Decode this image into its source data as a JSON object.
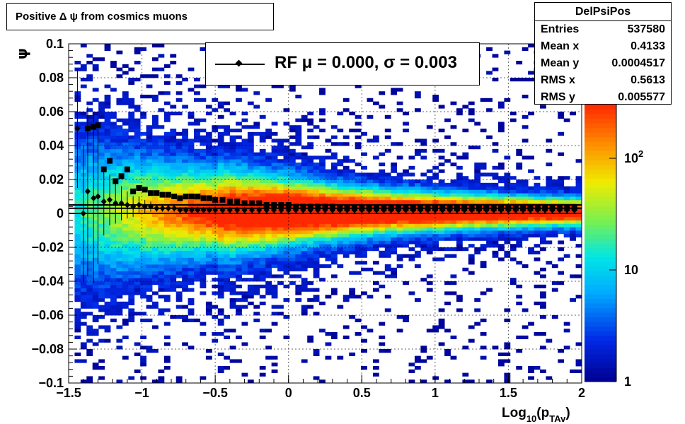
{
  "title": "Positive Δ ψ from cosmics muons",
  "stats": {
    "name": "DelPsiPos",
    "rows": [
      {
        "label": "Entries",
        "value": "537580"
      },
      {
        "label": "Mean x",
        "value": "0.4133"
      },
      {
        "label": "Mean y",
        "value": "0.0004517"
      },
      {
        "label": "RMS x",
        "value": "0.5613"
      },
      {
        "label": "RMS y",
        "value": "0.005577"
      }
    ]
  },
  "legend": {
    "entry": "RF μ =  0.000, σ =   0.003"
  },
  "chart_data": {
    "type": "heatmap",
    "xlabel": "Log10(pTAv)",
    "ylabel": "ψ",
    "xlim": [
      -1.5,
      2
    ],
    "ylim": [
      -0.1,
      0.1
    ],
    "x_ticks": [
      "−1.5",
      "−1",
      "−0.5",
      "0",
      "0.5",
      "1",
      "1.5",
      "2"
    ],
    "y_ticks": [
      "−0.1",
      "−0.08",
      "−0.06",
      "−0.04",
      "−0.02",
      "0",
      "0.02",
      "0.04",
      "0.06",
      "0.08",
      "0.1"
    ],
    "z_ticks": [
      "1",
      "10",
      "10^2"
    ],
    "z_scale": "log",
    "grid": true,
    "colors": {
      "low": "#00008f",
      "mid": "#00c8ff",
      "high": "#ff3000",
      "line": "#000000"
    },
    "series": [
      {
        "name": "mean",
        "marker": "diamond",
        "x": [
          -1.44,
          -1.4,
          -1.37,
          -1.33,
          -1.3,
          -1.26,
          -1.22,
          -1.18,
          -1.14,
          -1.1,
          -1.06,
          -1.02,
          -0.98,
          -0.94,
          -0.9,
          -0.86,
          -0.82,
          -0.78,
          -0.74,
          -0.7,
          -0.66,
          -0.62,
          -0.58,
          -0.54,
          -0.5,
          -0.45,
          -0.4,
          -0.35,
          -0.3,
          -0.25,
          -0.2,
          -0.15,
          -0.1,
          -0.05,
          0.0,
          0.05,
          0.1,
          0.15,
          0.2,
          0.25,
          0.3,
          0.35,
          0.4,
          0.45,
          0.5,
          0.55,
          0.6,
          0.65,
          0.7,
          0.75,
          0.8,
          0.85,
          0.9,
          0.95,
          1.0,
          1.05,
          1.1,
          1.15,
          1.2,
          1.25,
          1.3,
          1.35,
          1.4,
          1.45,
          1.5,
          1.55,
          1.6,
          1.65,
          1.7,
          1.75,
          1.8,
          1.85,
          1.9,
          1.95
        ],
        "y": [
          0.05,
          0.0,
          0.013,
          0.009,
          0.01,
          0.007,
          0.008,
          0.006,
          0.006,
          0.005,
          0.004,
          0.005,
          0.004,
          0.004,
          0.003,
          0.003,
          0.003,
          0.003,
          0.002,
          0.002,
          0.002,
          0.002,
          0.002,
          0.002,
          0.002,
          0.002,
          0.002,
          0.002,
          0.002,
          0.002,
          0.002,
          0.002,
          0.002,
          0.002,
          0.002,
          0.002,
          0.002,
          0.002,
          0.002,
          0.002,
          0.002,
          0.002,
          0.002,
          0.002,
          0.002,
          0.002,
          0.002,
          0.002,
          0.002,
          0.002,
          0.002,
          0.002,
          0.002,
          0.002,
          0.002,
          0.002,
          0.002,
          0.002,
          0.002,
          0.002,
          0.002,
          0.002,
          0.002,
          0.002,
          0.002,
          0.002,
          0.002,
          0.002,
          0.002,
          0.002,
          0.002,
          0.002,
          0.002,
          0.002
        ],
        "err": [
          0.035,
          0.04,
          0.05,
          0.05,
          0.04,
          0.02,
          0.015,
          0.012,
          0.01,
          0.008,
          0.006,
          0.005,
          0.004,
          0.003,
          0.002,
          0.002,
          0.002,
          0.002,
          0.001,
          0.001,
          0.001,
          0.001,
          0.001,
          0.001,
          0.001,
          0.001,
          0.001,
          0.001,
          0.001,
          0.001,
          0.001,
          0.001,
          0.001,
          0.001,
          0.001,
          0.001,
          0.001,
          0.001,
          0.001,
          0.001,
          0.001,
          0.001,
          0.001,
          0.001,
          0.001,
          0.001,
          0.001,
          0.001,
          0.001,
          0.001,
          0.001,
          0.001,
          0.001,
          0.001,
          0.001,
          0.001,
          0.001,
          0.001,
          0.001,
          0.001,
          0.001,
          0.001,
          0.001,
          0.001,
          0.001,
          0.001,
          0.001,
          0.001,
          0.001,
          0.001,
          0.001,
          0.001,
          0.001,
          0.001
        ]
      },
      {
        "name": "sigma",
        "marker": "square",
        "x": [
          -1.37,
          -1.33,
          -1.3,
          -1.26,
          -1.22,
          -1.18,
          -1.14,
          -1.1,
          -1.06,
          -1.02,
          -0.98,
          -0.94,
          -0.9,
          -0.86,
          -0.82,
          -0.78,
          -0.74,
          -0.7,
          -0.66,
          -0.62,
          -0.58,
          -0.54,
          -0.5,
          -0.45,
          -0.4,
          -0.35,
          -0.3,
          -0.25,
          -0.2,
          -0.15,
          -0.1,
          -0.05,
          0.0,
          0.05,
          0.1,
          0.15,
          0.2,
          0.25,
          0.3,
          0.35,
          0.4,
          0.45,
          0.5,
          0.55,
          0.6,
          0.65,
          0.7,
          0.75,
          0.8,
          0.85,
          0.9,
          0.95,
          1.0,
          1.05,
          1.1,
          1.15,
          1.2,
          1.25,
          1.3,
          1.35,
          1.4,
          1.45,
          1.5,
          1.55,
          1.6,
          1.65,
          1.7,
          1.75,
          1.8,
          1.85,
          1.9,
          1.95
        ],
        "y": [
          0.05,
          0.051,
          0.052,
          0.026,
          0.031,
          0.019,
          0.022,
          0.026,
          0.013,
          0.015,
          0.014,
          0.012,
          0.012,
          0.011,
          0.011,
          0.01,
          0.009,
          0.01,
          0.01,
          0.01,
          0.009,
          0.009,
          0.008,
          0.008,
          0.007,
          0.007,
          0.006,
          0.006,
          0.006,
          0.005,
          0.005,
          0.005,
          0.005,
          0.004,
          0.004,
          0.004,
          0.004,
          0.004,
          0.004,
          0.003,
          0.003,
          0.003,
          0.003,
          0.003,
          0.003,
          0.003,
          0.003,
          0.003,
          0.003,
          0.003,
          0.003,
          0.003,
          0.003,
          0.003,
          0.003,
          0.003,
          0.003,
          0.003,
          0.003,
          0.003,
          0.003,
          0.003,
          0.003,
          0.003,
          0.003,
          0.003,
          0.003,
          0.003,
          0.003,
          0.003,
          0.003,
          0.003
        ]
      }
    ],
    "fit_lines_y": [
      0.0,
      0.003,
      0.005
    ]
  }
}
